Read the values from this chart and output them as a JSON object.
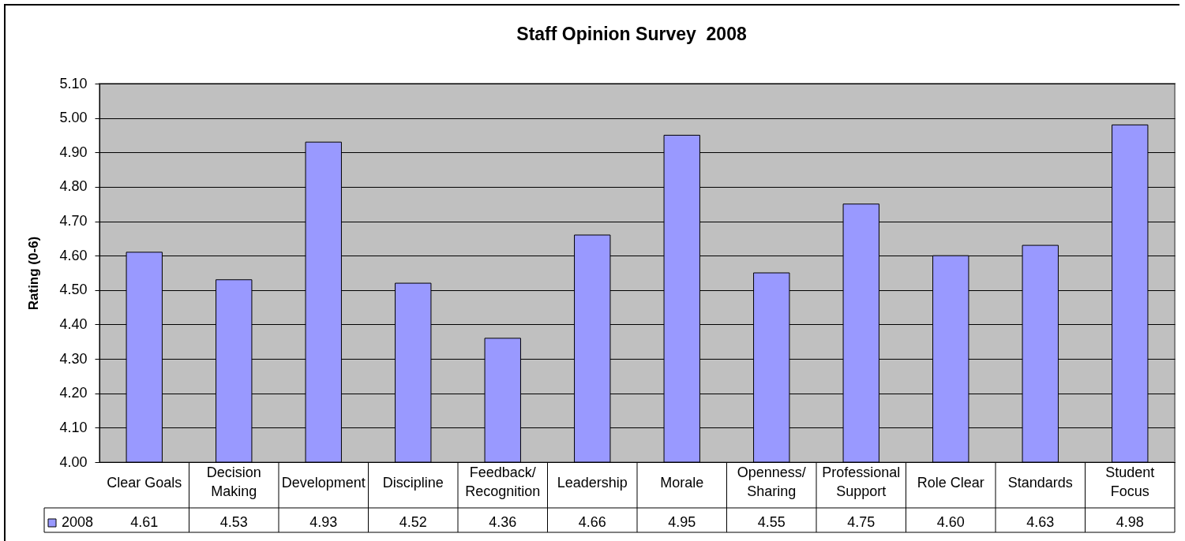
{
  "chart_data": {
    "type": "bar",
    "title": "Staff Opinion Survey  2008",
    "ylabel": "Rating (0-6)",
    "categories": [
      "Clear Goals",
      "Decision Making",
      "Development",
      "Discipline",
      "Feedback/Recognition",
      "Leadership",
      "Morale",
      "Openness/Sharing",
      "Professional Support",
      "Role Clear",
      "Standards",
      "Student Focus"
    ],
    "series": [
      {
        "name": "2008",
        "color": "#9999ff",
        "values": [
          4.61,
          4.53,
          4.93,
          4.52,
          4.36,
          4.66,
          4.95,
          4.55,
          4.75,
          4.6,
          4.63,
          4.98
        ],
        "value_labels": [
          "4.61",
          "4.53",
          "4.93",
          "4.52",
          "4.36",
          "4.66",
          "4.95",
          "4.55",
          "4.75",
          "4.60",
          "4.63",
          "4.98"
        ]
      }
    ],
    "ylim": [
      4,
      5.1
    ],
    "yticks": [
      {
        "value": 4,
        "label": "4.00"
      },
      {
        "value": 4.1,
        "label": "4.10"
      },
      {
        "value": 4.2,
        "label": "4.20"
      },
      {
        "value": 4.3,
        "label": "4.30"
      },
      {
        "value": 4.4,
        "label": "4.40"
      },
      {
        "value": 4.5,
        "label": "4.50"
      },
      {
        "value": 4.6,
        "label": "4.60"
      },
      {
        "value": 4.7,
        "label": "4.70"
      },
      {
        "value": 4.8,
        "label": "4.80"
      },
      {
        "value": 4.9,
        "label": "4.90"
      },
      {
        "value": 5,
        "label": "5.00"
      },
      {
        "value": 5.1,
        "label": "5.10"
      }
    ],
    "grid": "y",
    "legend": "bottom"
  }
}
